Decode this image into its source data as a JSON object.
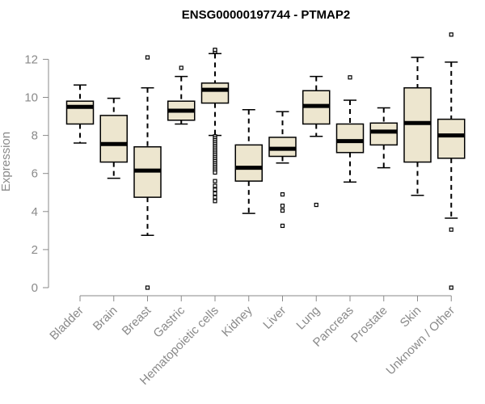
{
  "chart_data": {
    "type": "box",
    "title": "ENSG00000197744 - PTMAP2",
    "ylabel": "Expression",
    "xlabel": "",
    "ylim": [
      0,
      13.5
    ],
    "yticks": [
      0,
      2,
      4,
      6,
      8,
      10,
      12
    ],
    "grid": false,
    "colors": {
      "box_fill": "#ede6cf",
      "box_stroke": "#000000",
      "axis": "#8a8a8a",
      "text": "#8a8a8a"
    },
    "categories": [
      "Bladder",
      "Brain",
      "Breast",
      "Gastric",
      "Hematopoietic cells",
      "Kidney",
      "Liver",
      "Lung",
      "Pancreas",
      "Prostate",
      "Skin",
      "Unknown / Other"
    ],
    "boxes": [
      {
        "label": "Bladder",
        "whisker_low": 7.6,
        "q1": 8.6,
        "median": 9.5,
        "q3": 9.8,
        "whisker_high": 10.65,
        "outliers": []
      },
      {
        "label": "Brain",
        "whisker_low": 5.75,
        "q1": 6.6,
        "median": 7.55,
        "q3": 9.05,
        "whisker_high": 9.95,
        "outliers": []
      },
      {
        "label": "Breast",
        "whisker_low": 2.75,
        "q1": 4.75,
        "median": 6.15,
        "q3": 7.4,
        "whisker_high": 10.5,
        "outliers": [
          12.1,
          0.0
        ]
      },
      {
        "label": "Gastric",
        "whisker_low": 8.6,
        "q1": 8.8,
        "median": 9.3,
        "q3": 9.8,
        "whisker_high": 11.1,
        "outliers": [
          11.55
        ]
      },
      {
        "label": "Hematopoietic cells",
        "whisker_low": 8.0,
        "q1": 9.7,
        "median": 10.4,
        "q3": 10.75,
        "whisker_high": 12.3,
        "outliers": [
          12.45,
          12.4,
          12.5,
          7.95,
          7.85,
          7.75,
          7.65,
          7.55,
          7.45,
          7.35,
          7.25,
          7.15,
          7.05,
          6.95,
          6.85,
          6.75,
          6.65,
          6.55,
          6.45,
          6.35,
          6.25,
          6.15,
          6.05,
          5.6,
          5.35,
          5.15,
          4.95,
          4.75,
          4.55
        ]
      },
      {
        "label": "Kidney",
        "whisker_low": 3.9,
        "q1": 5.6,
        "median": 6.3,
        "q3": 7.5,
        "whisker_high": 9.35,
        "outliers": []
      },
      {
        "label": "Liver",
        "whisker_low": 6.55,
        "q1": 6.9,
        "median": 7.3,
        "q3": 7.9,
        "whisker_high": 9.25,
        "outliers": [
          4.9,
          4.3,
          4.05,
          3.25
        ]
      },
      {
        "label": "Lung",
        "whisker_low": 7.95,
        "q1": 8.6,
        "median": 9.55,
        "q3": 10.35,
        "whisker_high": 11.1,
        "outliers": [
          4.35
        ]
      },
      {
        "label": "Pancreas",
        "whisker_low": 5.55,
        "q1": 7.1,
        "median": 7.7,
        "q3": 8.6,
        "whisker_high": 9.85,
        "outliers": [
          11.05
        ]
      },
      {
        "label": "Prostate",
        "whisker_low": 6.3,
        "q1": 7.5,
        "median": 8.2,
        "q3": 8.65,
        "whisker_high": 9.45,
        "outliers": []
      },
      {
        "label": "Skin",
        "whisker_low": 4.85,
        "q1": 6.6,
        "median": 8.65,
        "q3": 10.5,
        "whisker_high": 12.1,
        "outliers": []
      },
      {
        "label": "Unknown / Other",
        "whisker_low": 3.65,
        "q1": 6.8,
        "median": 8.0,
        "q3": 8.85,
        "whisker_high": 11.85,
        "outliers": [
          13.3,
          3.05,
          0.0
        ]
      }
    ]
  }
}
